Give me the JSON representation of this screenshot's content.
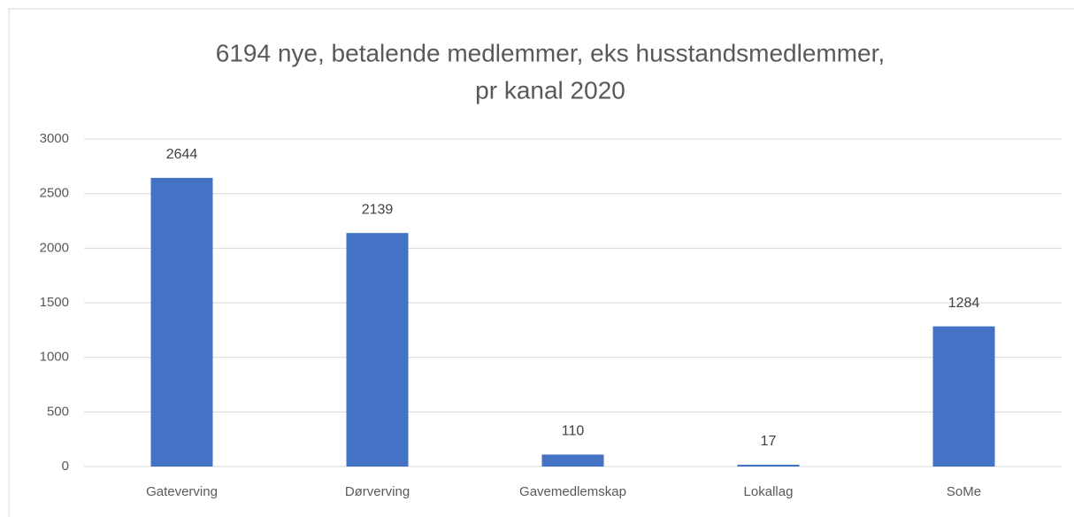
{
  "chart_data": {
    "type": "bar",
    "title": [
      "6194 nye, betalende medlemmer, eks husstandsmedlemmer,",
      "pr kanal 2020"
    ],
    "categories": [
      "Gateverving",
      "Dørverving",
      "Gavemedlemskap",
      "Lokallag",
      "SoMe"
    ],
    "values": [
      2644,
      2139,
      110,
      17,
      1284
    ],
    "color": "#4472c4",
    "ylim": [
      0,
      3000
    ],
    "yticks": [
      0,
      500,
      1000,
      1500,
      2000,
      2500,
      3000
    ],
    "grid": true,
    "data_labels": true
  }
}
